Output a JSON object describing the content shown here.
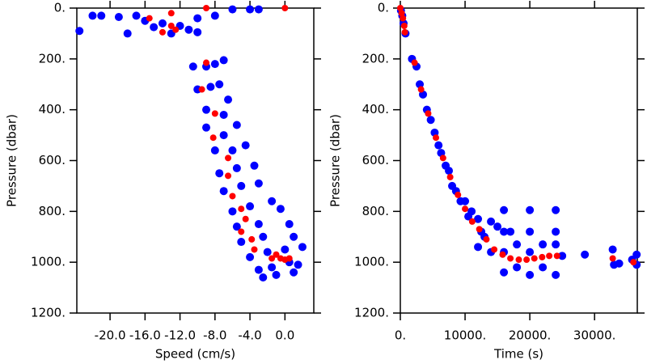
{
  "chart_data": [
    {
      "type": "scatter",
      "xlabel": "Speed (cm/s)",
      "ylabel": "Pressure (dbar)",
      "xlim": [
        -23.8,
        3.3
      ],
      "ylim": [
        1200,
        0
      ],
      "xticks": [
        {
          "value": -20,
          "label": "-20.0"
        },
        {
          "value": -16,
          "label": "-16.0"
        },
        {
          "value": -12,
          "label": "-12.0"
        },
        {
          "value": -8,
          "label": "-8.0"
        },
        {
          "value": -4,
          "label": "-4.0"
        },
        {
          "value": 0,
          "label": "0.0"
        }
      ],
      "yticks": [
        {
          "value": 0,
          "label": "0."
        },
        {
          "value": 200,
          "label": "200."
        },
        {
          "value": 400,
          "label": "400."
        },
        {
          "value": 600,
          "label": "600."
        },
        {
          "value": 800,
          "label": "800."
        },
        {
          "value": 1000,
          "label": "1000."
        },
        {
          "value": 1200,
          "label": "1200."
        }
      ],
      "series": [
        {
          "color": "#0000ff",
          "x": [
            -23.5,
            -22,
            -21,
            -19,
            -17,
            -16,
            -14,
            -12,
            -11,
            -10,
            -8,
            -6,
            -4,
            -3,
            -13,
            -18,
            -10,
            -15,
            -10.5,
            -9,
            -8,
            -7,
            -10,
            -8.5,
            -7.5,
            -9,
            -7,
            -6.5,
            -9,
            -7,
            -5.5,
            -8,
            -6,
            -4.5,
            -7.5,
            -5.5,
            -3.5,
            -7,
            -5,
            -3,
            -1.5,
            -0.5,
            -6,
            -4,
            -5.5,
            -3,
            0.5,
            -5,
            -2.5,
            1,
            2,
            -4,
            -2,
            0,
            -3,
            -1,
            1,
            -2.5,
            0.5,
            1.5,
            -1.5
          ],
          "values": [
            90,
            30,
            30,
            35,
            30,
            50,
            60,
            70,
            85,
            40,
            30,
            5,
            5,
            5,
            100,
            100,
            95,
            75,
            230,
            230,
            220,
            205,
            320,
            310,
            300,
            400,
            420,
            360,
            470,
            500,
            460,
            560,
            560,
            540,
            650,
            630,
            620,
            720,
            700,
            690,
            760,
            790,
            800,
            780,
            860,
            850,
            850,
            920,
            900,
            900,
            940,
            980,
            960,
            950,
            1030,
            1050,
            1040,
            1060,
            1000,
            1010,
            1020
          ]
        },
        {
          "color": "#ff0000",
          "x": [
            -15.5,
            -13,
            -14,
            -13,
            -12.5,
            -9,
            0,
            -9,
            -9.5,
            -8,
            -8.2,
            -6.5,
            -6.5,
            -6,
            -5,
            -4.5,
            -5,
            -3.8,
            -3.5,
            -1,
            -0.5,
            0,
            0.5,
            -1.5
          ],
          "values": [
            40,
            20,
            95,
            70,
            85,
            0,
            0,
            215,
            320,
            415,
            510,
            590,
            660,
            740,
            790,
            830,
            880,
            910,
            950,
            970,
            985,
            990,
            985,
            985
          ]
        }
      ]
    },
    {
      "type": "scatter",
      "xlabel": "Time (s)",
      "ylabel": "Pressure (dbar)",
      "xlim": [
        0,
        36600
      ],
      "ylim": [
        1200,
        0
      ],
      "xticks": [
        {
          "value": 0,
          "label": "0."
        },
        {
          "value": 10000,
          "label": "10000."
        },
        {
          "value": 20000,
          "label": "20000."
        },
        {
          "value": 30000,
          "label": "30000."
        }
      ],
      "yticks": [
        {
          "value": 0,
          "label": "0."
        },
        {
          "value": 200,
          "label": "200."
        },
        {
          "value": 400,
          "label": "400."
        },
        {
          "value": 600,
          "label": "600."
        },
        {
          "value": 800,
          "label": "800."
        },
        {
          "value": 1000,
          "label": "1000."
        },
        {
          "value": 1200,
          "label": "1200."
        }
      ],
      "series": [
        {
          "color": "#0000ff",
          "x": [
            100,
            300,
            500,
            800,
            1800,
            2500,
            3000,
            3500,
            4100,
            4700,
            5300,
            5900,
            6300,
            7000,
            7500,
            8000,
            8600,
            9300,
            10000,
            10500,
            11000,
            12000,
            12500,
            13000,
            14000,
            15000,
            16000,
            17000,
            20000,
            24000,
            24000,
            20000,
            16000,
            18000,
            22000,
            24000,
            14000,
            16000,
            20000,
            24000,
            18000,
            22000,
            25000,
            28500,
            32800,
            33000,
            33800,
            35800,
            36500,
            36500,
            16000,
            20000,
            12000
          ],
          "values": [
            10,
            30,
            60,
            100,
            200,
            230,
            300,
            340,
            400,
            440,
            490,
            540,
            570,
            620,
            640,
            700,
            720,
            760,
            760,
            820,
            800,
            830,
            880,
            900,
            840,
            860,
            880,
            880,
            880,
            880,
            795,
            795,
            795,
            930,
            930,
            930,
            960,
            1040,
            1050,
            1050,
            1020,
            1020,
            975,
            970,
            950,
            1010,
            1005,
            990,
            970,
            1010,
            960,
            960,
            940
          ]
        },
        {
          "color": "#ff0000",
          "x": [
            0,
            200,
            400,
            600,
            700,
            2200,
            3200,
            4300,
            5500,
            6600,
            7700,
            8900,
            10000,
            11100,
            12200,
            13300,
            14500,
            15800,
            17000,
            18300,
            19500,
            20700,
            21900,
            23000,
            24200,
            32800,
            36000
          ],
          "values": [
            0,
            20,
            40,
            70,
            95,
            215,
            320,
            415,
            510,
            590,
            665,
            735,
            790,
            840,
            870,
            910,
            950,
            970,
            985,
            990,
            990,
            985,
            980,
            975,
            975,
            985,
            1000
          ]
        }
      ]
    }
  ]
}
